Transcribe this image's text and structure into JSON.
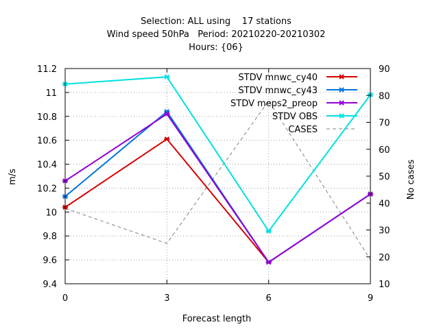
{
  "chart_data": {
    "type": "line",
    "title_lines": [
      "Selection: ALL using    17 stations",
      "Wind speed 50hPa   Period: 20210220-20210302",
      "Hours: {06}"
    ],
    "xlabel": "Forecast length",
    "ylabel": "m/s",
    "y2label": "No cases",
    "x": [
      0,
      3,
      6,
      9
    ],
    "xticks": [
      "0",
      "3",
      "6",
      "9"
    ],
    "ylim": [
      9.4,
      11.2
    ],
    "yticks": [
      "9.4",
      "9.6",
      "9.8",
      "10",
      "10.2",
      "10.4",
      "10.6",
      "10.8",
      "11",
      "11.2"
    ],
    "y2lim": [
      10,
      90
    ],
    "y2ticks": [
      "10",
      "20",
      "30",
      "40",
      "50",
      "60",
      "70",
      "80",
      "90"
    ],
    "grid": true,
    "legend_position": "top-right",
    "series": [
      {
        "name": "STDV mnwc_cy40",
        "axis": "y",
        "color": "#d40000",
        "style": "solid",
        "marker": "x",
        "values": [
          10.04,
          10.61,
          9.58,
          10.15
        ]
      },
      {
        "name": "STDV mnwc_cy43",
        "axis": "y",
        "color": "#0072e0",
        "style": "solid",
        "marker": "x",
        "values": [
          10.13,
          10.84,
          9.58,
          10.15
        ]
      },
      {
        "name": "STDV meps2_preop",
        "axis": "y",
        "color": "#9400d3",
        "style": "solid",
        "marker": "x",
        "values": [
          10.26,
          10.82,
          9.58,
          10.15
        ]
      },
      {
        "name": "STDV OBS",
        "axis": "y",
        "color": "#00e0e0",
        "style": "solid",
        "marker": "x",
        "values": [
          11.07,
          11.13,
          9.84,
          10.98
        ]
      },
      {
        "name": "CASES",
        "axis": "y2",
        "color": "#808080",
        "style": "dashed",
        "marker": "none",
        "values": [
          38,
          25,
          78,
          19
        ]
      }
    ]
  }
}
